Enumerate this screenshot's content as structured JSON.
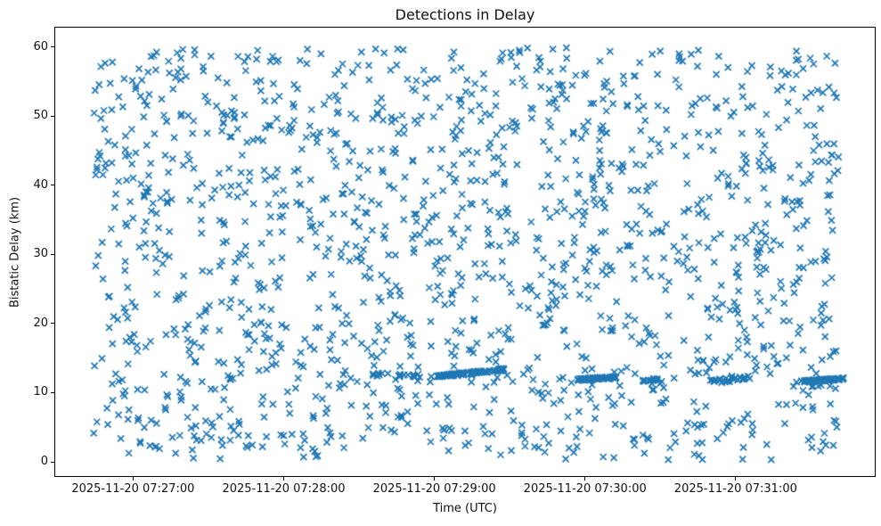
{
  "chart_data": {
    "type": "scatter",
    "title": "Detections in Delay",
    "xlabel": "Time (UTC)",
    "ylabel": "Bistatic Delay (km)",
    "marker": "x",
    "marker_color": "#1f77b4",
    "marker_size_px": 7,
    "marker_line_width_px": 1.7,
    "grid": false,
    "legend": "none",
    "x_axis": {
      "reference_time": "2025-11-20 07:27:00",
      "tick_labels": [
        "2025-11-20 07:27:00",
        "2025-11-20 07:28:00",
        "2025-11-20 07:29:00",
        "2025-11-20 07:30:00",
        "2025-11-20 07:31:00"
      ],
      "tick_offsets_s": [
        0,
        60,
        120,
        180,
        240
      ],
      "view_range_s": [
        -31.0,
        295.4
      ]
    },
    "y_axis": {
      "tick_labels": [
        "0",
        "10",
        "20",
        "30",
        "40",
        "50",
        "60"
      ],
      "tick_values": [
        0,
        10,
        20,
        30,
        40,
        50,
        60
      ],
      "view_range_km": [
        -2.06,
        62.8
      ]
    },
    "background_noise": {
      "description": "uniformly scattered clutter detections across the full time/delay window",
      "n_points": 1550,
      "time_range_s": [
        -16,
        281
      ],
      "delay_range_km": [
        0.3,
        59.9
      ],
      "seed": 42
    },
    "tracks": [
      {
        "name": "target-track-1-lead-in",
        "t_start_s": 93,
        "t_end_s": 121,
        "delay_start_km": 12.6,
        "delay_end_km": 12.4,
        "n_points": 16,
        "delay_jitter_km": 0.25
      },
      {
        "name": "target-track-1-dense",
        "t_start_s": 121,
        "t_end_s": 149,
        "delay_start_km": 12.35,
        "delay_end_km": 13.4,
        "n_points": 110,
        "delay_jitter_km": 0.18
      },
      {
        "name": "target-track-2-dense",
        "t_start_s": 177,
        "t_end_s": 193,
        "delay_start_km": 11.9,
        "delay_end_km": 12.2,
        "n_points": 60,
        "delay_jitter_km": 0.18
      },
      {
        "name": "target-track-2-tail",
        "t_start_s": 203,
        "t_end_s": 209,
        "delay_start_km": 11.8,
        "delay_end_km": 11.9,
        "n_points": 14,
        "delay_jitter_km": 0.2
      },
      {
        "name": "target-track-3-sparse",
        "t_start_s": 229,
        "t_end_s": 246,
        "delay_start_km": 11.5,
        "delay_end_km": 12.2,
        "n_points": 26,
        "delay_jitter_km": 0.3
      },
      {
        "name": "target-track-4-dense",
        "t_start_s": 266,
        "t_end_s": 283,
        "delay_start_km": 11.6,
        "delay_end_km": 12.0,
        "n_points": 75,
        "delay_jitter_km": 0.15
      }
    ]
  }
}
